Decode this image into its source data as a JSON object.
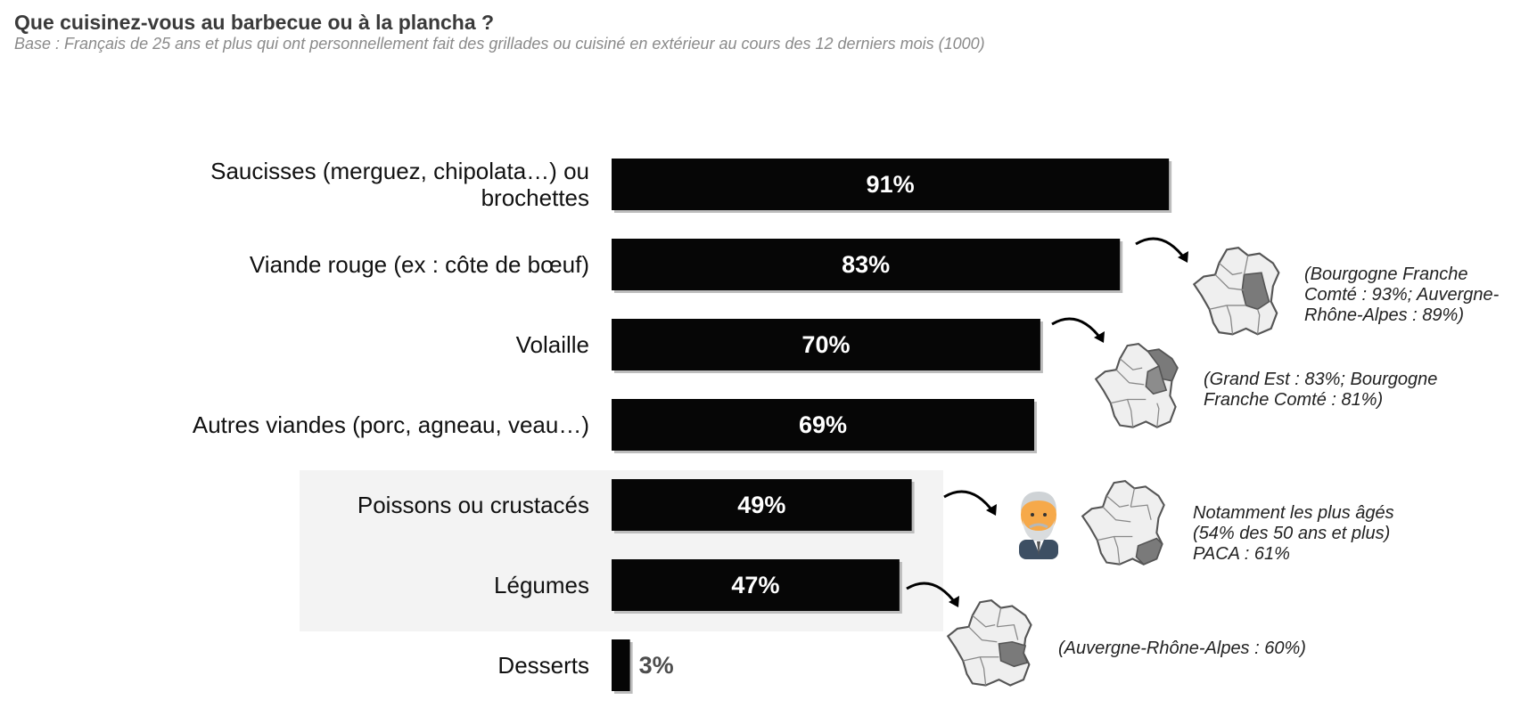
{
  "title": "Que cuisinez-vous au barbecue ou à la plancha ?",
  "subtitle": "Base : Français de 25 ans et plus qui ont personnellement fait des grillades ou cuisiné en extérieur au cours des 12 derniers mois (1000)",
  "chart_data": {
    "type": "bar",
    "orientation": "horizontal",
    "categories": [
      [
        "Saucisses (merguez, chipolata…) ou",
        "brochettes"
      ],
      [
        "Viande rouge (ex : côte de bœuf)"
      ],
      [
        "Volaille"
      ],
      [
        "Autres viandes (porc, agneau, veau…)"
      ],
      [
        "Poissons ou crustacés"
      ],
      [
        "Légumes"
      ],
      [
        "Desserts"
      ]
    ],
    "values": [
      91,
      83,
      70,
      69,
      49,
      47,
      3
    ],
    "value_labels": [
      "91%",
      "83%",
      "70%",
      "69%",
      "49%",
      "47%",
      "3%"
    ],
    "bar_color": "#060606",
    "highlighted_categories": [
      "Poissons ou crustacés",
      "Légumes"
    ],
    "highlight_color": "#f3f3f3",
    "xlim": [
      0,
      100
    ]
  },
  "annotations": [
    {
      "text": "(Bourgogne Franche\nComté : 93%; Auvergne-\nRhône-Alpes : 89%)",
      "icon": "france-map-icon"
    },
    {
      "text": "(Grand Est : 83%; Bourgogne\nFranche Comté : 81%)",
      "icon": "france-map-icon"
    },
    {
      "text": "Notamment les plus âgés\n(54% des 50 ans et plus)\nPACA : 61%",
      "icon": "france-map-icon"
    },
    {
      "text": "(Auvergne-Rhône-Alpes : 60%)",
      "icon": "france-map-icon"
    }
  ],
  "icons": {
    "person": "elderly-man-icon",
    "arrow": "curved-arrow-icon"
  }
}
